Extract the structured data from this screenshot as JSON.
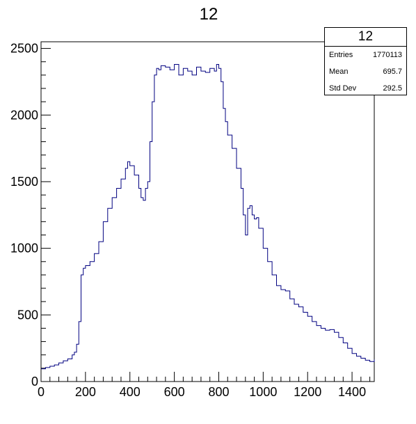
{
  "title": "12",
  "stats": {
    "title": "12",
    "rows": [
      {
        "label": "Entries",
        "value": "1770113"
      },
      {
        "label": "Mean",
        "value": "695.7"
      },
      {
        "label": "Std Dev",
        "value": "292.5"
      }
    ]
  },
  "colors": {
    "line": "#000080",
    "axis": "#000000",
    "background": "#ffffff"
  },
  "chart_data": {
    "type": "line",
    "title": "12",
    "xlabel": "",
    "ylabel": "",
    "xlim": [
      0,
      1500
    ],
    "ylim": [
      0,
      2550
    ],
    "x_ticks": [
      0,
      200,
      400,
      600,
      800,
      1000,
      1200,
      1400
    ],
    "y_ticks": [
      0,
      500,
      1000,
      1500,
      2000,
      2500
    ],
    "grid": false,
    "legend": "none",
    "series": [
      {
        "style": "step",
        "x": [
          0,
          20,
          40,
          60,
          80,
          100,
          120,
          140,
          150,
          160,
          170,
          180,
          190,
          200,
          220,
          240,
          260,
          280,
          300,
          320,
          340,
          360,
          380,
          390,
          400,
          420,
          440,
          450,
          460,
          470,
          480,
          490,
          500,
          510,
          520,
          530,
          540,
          560,
          580,
          600,
          620,
          640,
          660,
          680,
          700,
          720,
          740,
          760,
          780,
          790,
          800,
          810,
          820,
          830,
          840,
          860,
          880,
          900,
          910,
          920,
          930,
          940,
          950,
          960,
          970,
          980,
          1000,
          1020,
          1040,
          1060,
          1080,
          1100,
          1120,
          1140,
          1160,
          1180,
          1200,
          1220,
          1240,
          1260,
          1280,
          1300,
          1320,
          1340,
          1360,
          1380,
          1400,
          1420,
          1440,
          1460,
          1480,
          1500
        ],
        "y": [
          95,
          105,
          115,
          125,
          140,
          155,
          170,
          200,
          220,
          280,
          450,
          800,
          850,
          870,
          900,
          960,
          1050,
          1200,
          1300,
          1380,
          1450,
          1520,
          1600,
          1650,
          1620,
          1550,
          1450,
          1380,
          1360,
          1450,
          1500,
          1800,
          2100,
          2300,
          2350,
          2340,
          2370,
          2360,
          2340,
          2380,
          2300,
          2350,
          2330,
          2300,
          2360,
          2330,
          2320,
          2350,
          2330,
          2380,
          2350,
          2250,
          2050,
          1950,
          1850,
          1750,
          1600,
          1450,
          1250,
          1100,
          1300,
          1320,
          1250,
          1220,
          1230,
          1150,
          1000,
          900,
          800,
          720,
          690,
          680,
          620,
          580,
          560,
          520,
          490,
          450,
          420,
          400,
          385,
          390,
          370,
          330,
          290,
          250,
          210,
          190,
          175,
          160,
          150,
          165
        ]
      }
    ]
  }
}
